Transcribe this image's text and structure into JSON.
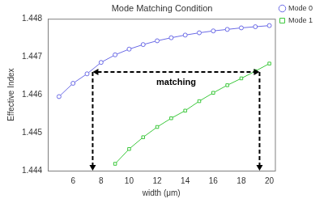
{
  "chart_data": {
    "type": "line",
    "title": "Mode Matching Condition",
    "x_label": "width (μm)",
    "y_label": "Effective Index",
    "x": [
      5,
      6,
      7,
      8,
      9,
      10,
      11,
      12,
      13,
      14,
      15,
      16,
      17,
      18,
      19,
      20
    ],
    "series": [
      {
        "name": "Mode 0",
        "color": "#6a6ae6",
        "marker": "circle",
        "values": [
          1.44595,
          1.4463,
          1.44655,
          1.44685,
          1.44705,
          1.4472,
          1.44732,
          1.44742,
          1.4475,
          1.44757,
          1.44763,
          1.44768,
          1.44772,
          1.44776,
          1.44779,
          1.44782
        ]
      },
      {
        "name": "Mode 1",
        "color": "#3cc83c",
        "marker": "square",
        "values": [
          null,
          null,
          null,
          null,
          1.44418,
          1.44457,
          1.44488,
          1.44515,
          1.44538,
          1.44558,
          1.44583,
          1.44605,
          1.44625,
          1.44643,
          1.44662,
          1.44682
        ]
      }
    ],
    "xlim": [
      4.2,
      20.4
    ],
    "xticks": [
      6,
      8,
      10,
      12,
      14,
      16,
      18,
      20
    ],
    "ylim": [
      1.444,
      1.448
    ],
    "yticks": [
      1.444,
      1.445,
      1.446,
      1.447,
      1.448
    ],
    "grid": false,
    "legend": "right",
    "annotation": {
      "text": "matching",
      "x": [
        7.4,
        19.3
      ],
      "y": 1.4466
    }
  }
}
